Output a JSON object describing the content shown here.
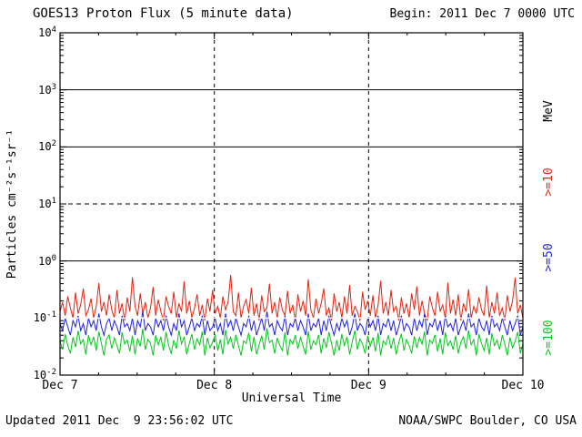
{
  "header": {
    "title": "GOES13 Proton Flux (5 minute data)",
    "begin_label": "Begin: 2011 Dec 7 0000 UTC"
  },
  "axes": {
    "y_label": "Particles cm⁻²s⁻¹sr⁻¹",
    "x_label": "Universal Time"
  },
  "footer": {
    "updated": "Updated 2011 Dec  9 23:56:02 UTC",
    "credit": "NOAA/SWPC Boulder, CO USA"
  },
  "right_labels": [
    {
      "text": "MeV",
      "color": "#000000"
    },
    {
      "text": ">=10",
      "color": "#e02413"
    },
    {
      "text": ">=50",
      "color": "#2020e0"
    },
    {
      "text": ">=100",
      "color": "#00c818"
    }
  ],
  "chart_data": {
    "type": "line",
    "title": "GOES13 Proton Flux (5 minute data)",
    "xlabel": "Universal Time",
    "ylabel": "Particles cm-2 s-1 sr-1",
    "y_scale": "log",
    "ylim": [
      0.01,
      10000
    ],
    "y_exponents": [
      4,
      3,
      2,
      1,
      0,
      -1,
      -2
    ],
    "x_range_days": [
      0,
      3
    ],
    "x_ticks": [
      "Dec 7",
      "Dec 8",
      "Dec 9",
      "Dec 10"
    ],
    "grid": "decade lines horizontal; dashed vertical at day boundaries",
    "legend_position": "right-edge rotated labels",
    "hlines": [
      {
        "value": 1000,
        "style": "solid"
      },
      {
        "value": 100,
        "style": "solid"
      },
      {
        "value": 10,
        "style": "dashed"
      },
      {
        "value": 1,
        "style": "solid"
      },
      {
        "value": 0.1,
        "style": "white-over"
      }
    ],
    "vlines_days": [
      1,
      2
    ],
    "series": [
      {
        "name": ">=10 MeV",
        "color": "#e02413",
        "values": [
          0.13,
          0.19,
          0.11,
          0.24,
          0.15,
          0.1,
          0.28,
          0.12,
          0.17,
          0.33,
          0.11,
          0.14,
          0.22,
          0.1,
          0.16,
          0.41,
          0.13,
          0.19,
          0.11,
          0.26,
          0.14,
          0.1,
          0.31,
          0.12,
          0.18,
          0.09,
          0.23,
          0.13,
          0.52,
          0.16,
          0.11,
          0.27,
          0.12,
          0.19,
          0.1,
          0.15,
          0.35,
          0.11,
          0.21,
          0.13,
          0.09,
          0.24,
          0.16,
          0.12,
          0.29,
          0.1,
          0.18,
          0.13,
          0.44,
          0.12,
          0.2,
          0.1,
          0.15,
          0.26,
          0.11,
          0.17,
          0.09,
          0.22,
          0.13,
          0.31,
          0.12,
          0.16,
          0.1,
          0.24,
          0.14,
          0.19,
          0.57,
          0.13,
          0.11,
          0.28,
          0.1,
          0.16,
          0.21,
          0.12,
          0.34,
          0.11,
          0.18,
          0.09,
          0.25,
          0.13,
          0.15,
          0.4,
          0.12,
          0.19,
          0.1,
          0.23,
          0.14,
          0.11,
          0.3,
          0.12,
          0.17,
          0.09,
          0.26,
          0.13,
          0.2,
          0.11,
          0.48,
          0.14,
          0.1,
          0.22,
          0.12,
          0.18,
          0.33,
          0.11,
          0.15,
          0.09,
          0.27,
          0.13,
          0.19,
          0.1,
          0.24,
          0.12,
          0.38,
          0.11,
          0.16,
          0.13,
          0.09,
          0.29,
          0.14,
          0.2,
          0.11,
          0.25,
          0.1,
          0.17,
          0.45,
          0.12,
          0.19,
          0.11,
          0.31,
          0.13,
          0.16,
          0.09,
          0.23,
          0.12,
          0.18,
          0.1,
          0.27,
          0.14,
          0.36,
          0.11,
          0.2,
          0.12,
          0.09,
          0.24,
          0.15,
          0.11,
          0.29,
          0.13,
          0.17,
          0.1,
          0.42,
          0.12,
          0.21,
          0.11,
          0.26,
          0.09,
          0.18,
          0.13,
          0.32,
          0.1,
          0.16,
          0.12,
          0.23,
          0.14,
          0.11,
          0.37,
          0.1,
          0.19,
          0.12,
          0.28,
          0.11,
          0.15,
          0.09,
          0.25,
          0.13,
          0.2,
          0.51,
          0.12,
          0.17,
          0.1
        ]
      },
      {
        "name": ">=50 MeV",
        "color": "#2020e0",
        "values": [
          0.08,
          0.06,
          0.1,
          0.07,
          0.05,
          0.09,
          0.07,
          0.11,
          0.06,
          0.08,
          0.05,
          0.1,
          0.07,
          0.09,
          0.06,
          0.12,
          0.07,
          0.05,
          0.08,
          0.1,
          0.06,
          0.09,
          0.07,
          0.05,
          0.11,
          0.07,
          0.08,
          0.06,
          0.1,
          0.05,
          0.09,
          0.07,
          0.13,
          0.06,
          0.08,
          0.07,
          0.05,
          0.1,
          0.07,
          0.09,
          0.06,
          0.11,
          0.07,
          0.05,
          0.08,
          0.06,
          0.12,
          0.07,
          0.09,
          0.05,
          0.07,
          0.1,
          0.06,
          0.08,
          0.07,
          0.11,
          0.05,
          0.09,
          0.06,
          0.07,
          0.1,
          0.06,
          0.08,
          0.05,
          0.12,
          0.07,
          0.09,
          0.06,
          0.1,
          0.07,
          0.05,
          0.08,
          0.07,
          0.11,
          0.06,
          0.09,
          0.05,
          0.07,
          0.1,
          0.06,
          0.13,
          0.07,
          0.08,
          0.05,
          0.09,
          0.07,
          0.06,
          0.11,
          0.05,
          0.08,
          0.07,
          0.1,
          0.06,
          0.09,
          0.07,
          0.05,
          0.12,
          0.06,
          0.08,
          0.07,
          0.1,
          0.05,
          0.09,
          0.06,
          0.11,
          0.07,
          0.05,
          0.08,
          0.06,
          0.1,
          0.07,
          0.09,
          0.05,
          0.07,
          0.12,
          0.06,
          0.08,
          0.07,
          0.05,
          0.1,
          0.07,
          0.09,
          0.06,
          0.11,
          0.05,
          0.08,
          0.07,
          0.1,
          0.06,
          0.09,
          0.05,
          0.07,
          0.11,
          0.06,
          0.08,
          0.07,
          0.05,
          0.1,
          0.06,
          0.09,
          0.07,
          0.12,
          0.05,
          0.08,
          0.07,
          0.1,
          0.06,
          0.09,
          0.05,
          0.11,
          0.07,
          0.08,
          0.06,
          0.1,
          0.05,
          0.07,
          0.09,
          0.06,
          0.12,
          0.07,
          0.08,
          0.05,
          0.1,
          0.07,
          0.06,
          0.09,
          0.05,
          0.11,
          0.07,
          0.08,
          0.06,
          0.1,
          0.07,
          0.05,
          0.09,
          0.06,
          0.08,
          0.11,
          0.05,
          0.07
        ]
      },
      {
        "name": ">=100 MeV",
        "color": "#00c818",
        "values": [
          0.04,
          0.028,
          0.052,
          0.033,
          0.024,
          0.046,
          0.031,
          0.06,
          0.035,
          0.042,
          0.023,
          0.05,
          0.034,
          0.047,
          0.027,
          0.058,
          0.036,
          0.022,
          0.043,
          0.051,
          0.029,
          0.045,
          0.033,
          0.024,
          0.056,
          0.035,
          0.041,
          0.026,
          0.049,
          0.023,
          0.044,
          0.032,
          0.065,
          0.028,
          0.042,
          0.036,
          0.022,
          0.05,
          0.034,
          0.046,
          0.027,
          0.057,
          0.033,
          0.024,
          0.041,
          0.029,
          0.061,
          0.035,
          0.047,
          0.023,
          0.036,
          0.052,
          0.028,
          0.043,
          0.034,
          0.058,
          0.022,
          0.045,
          0.03,
          0.038,
          0.05,
          0.027,
          0.042,
          0.023,
          0.062,
          0.035,
          0.046,
          0.029,
          0.051,
          0.033,
          0.022,
          0.04,
          0.036,
          0.055,
          0.026,
          0.047,
          0.023,
          0.034,
          0.049,
          0.028,
          0.066,
          0.037,
          0.041,
          0.024,
          0.045,
          0.033,
          0.027,
          0.056,
          0.022,
          0.042,
          0.035,
          0.05,
          0.029,
          0.046,
          0.032,
          0.023,
          0.059,
          0.028,
          0.04,
          0.034,
          0.051,
          0.024,
          0.044,
          0.03,
          0.057,
          0.036,
          0.022,
          0.041,
          0.027,
          0.052,
          0.033,
          0.047,
          0.023,
          0.038,
          0.06,
          0.028,
          0.043,
          0.035,
          0.024,
          0.049,
          0.032,
          0.046,
          0.026,
          0.055,
          0.022,
          0.04,
          0.034,
          0.05,
          0.029,
          0.045,
          0.023,
          0.037,
          0.053,
          0.027,
          0.042,
          0.033,
          0.024,
          0.048,
          0.03,
          0.046,
          0.035,
          0.058,
          0.022,
          0.041,
          0.036,
          0.051,
          0.026,
          0.044,
          0.023,
          0.056,
          0.033,
          0.04,
          0.028,
          0.049,
          0.024,
          0.038,
          0.047,
          0.029,
          0.061,
          0.034,
          0.042,
          0.022,
          0.052,
          0.036,
          0.027,
          0.045,
          0.023,
          0.054,
          0.033,
          0.041,
          0.028,
          0.05,
          0.035,
          0.022,
          0.046,
          0.03,
          0.039,
          0.057,
          0.024,
          0.036
        ]
      }
    ]
  }
}
